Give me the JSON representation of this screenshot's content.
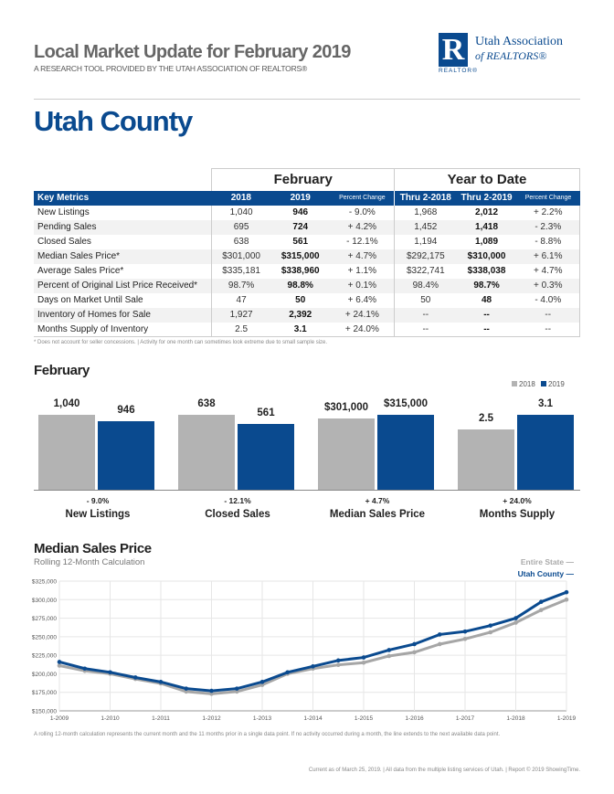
{
  "header": {
    "title": "Local Market Update for February 2019",
    "subtitle": "A RESEARCH TOOL PROVIDED BY THE UTAH ASSOCIATION OF REALTORS®",
    "logo": {
      "mark": "R",
      "realtor": "REALTOR®",
      "name1": "Utah Association",
      "name2": "of REALTORS®"
    }
  },
  "area": "Utah County",
  "table": {
    "groups": [
      "February",
      "Year to Date"
    ],
    "columns": [
      "Key Metrics",
      "2018",
      "2019",
      "Percent Change",
      "Thru 2-2018",
      "Thru 2-2019",
      "Percent Change"
    ],
    "rows": [
      [
        "New Listings",
        "1,040",
        "946",
        "- 9.0%",
        "1,968",
        "2,012",
        "+ 2.2%"
      ],
      [
        "Pending Sales",
        "695",
        "724",
        "+ 4.2%",
        "1,452",
        "1,418",
        "- 2.3%"
      ],
      [
        "Closed Sales",
        "638",
        "561",
        "- 12.1%",
        "1,194",
        "1,089",
        "- 8.8%"
      ],
      [
        "Median Sales Price*",
        "$301,000",
        "$315,000",
        "+ 4.7%",
        "$292,175",
        "$310,000",
        "+ 6.1%"
      ],
      [
        "Average Sales Price*",
        "$335,181",
        "$338,960",
        "+ 1.1%",
        "$322,741",
        "$338,038",
        "+ 4.7%"
      ],
      [
        "Percent of Original List Price Received*",
        "98.7%",
        "98.8%",
        "+ 0.1%",
        "98.4%",
        "98.7%",
        "+ 0.3%"
      ],
      [
        "Days on Market Until Sale",
        "47",
        "50",
        "+ 6.4%",
        "50",
        "48",
        "- 4.0%"
      ],
      [
        "Inventory of Homes for Sale",
        "1,927",
        "2,392",
        "+ 24.1%",
        "--",
        "--",
        "--"
      ],
      [
        "Months Supply of Inventory",
        "2.5",
        "3.1",
        "+ 24.0%",
        "--",
        "--",
        "--"
      ]
    ],
    "footnote": "* Does not account for seller concessions.  |  Activity for one month can sometimes look extreme due to small sample size."
  },
  "chart_data": [
    {
      "type": "bar",
      "title": "February",
      "legend": [
        "2018",
        "2019"
      ],
      "colors": [
        "#b3b3b3",
        "#0a4a8f"
      ],
      "legend_placement": "top-right",
      "groups": [
        {
          "name": "New Listings",
          "change": "- 9.0%",
          "values": [
            1040,
            946
          ],
          "labels": [
            "1,040",
            "946"
          ]
        },
        {
          "name": "Closed Sales",
          "change": "- 12.1%",
          "values": [
            638,
            561
          ],
          "labels": [
            "638",
            "561"
          ]
        },
        {
          "name": "Median Sales Price",
          "change": "+ 4.7%",
          "values": [
            301000,
            315000
          ],
          "labels": [
            "$301,000",
            "$315,000"
          ]
        },
        {
          "name": "Months Supply",
          "change": "+ 24.0%",
          "values": [
            2.5,
            3.1
          ],
          "labels": [
            "2.5",
            "3.1"
          ]
        }
      ]
    },
    {
      "type": "line",
      "title": "Median Sales Price",
      "subtitle": "Rolling 12-Month Calculation",
      "grid": true,
      "ylim": [
        150000,
        325000
      ],
      "yticks": [
        "$150,000",
        "$175,000",
        "$200,000",
        "$225,000",
        "$250,000",
        "$275,000",
        "$300,000",
        "$325,000"
      ],
      "xticks": [
        "1-2009",
        "1-2010",
        "1-2011",
        "1-2012",
        "1-2013",
        "1-2014",
        "1-2015",
        "1-2016",
        "1-2017",
        "1-2018",
        "1-2019"
      ],
      "x": [
        "1-2009",
        "7-2009",
        "1-2010",
        "7-2010",
        "1-2011",
        "7-2011",
        "1-2012",
        "7-2012",
        "1-2013",
        "7-2013",
        "1-2014",
        "7-2014",
        "1-2015",
        "7-2015",
        "1-2016",
        "7-2016",
        "1-2017",
        "7-2017",
        "1-2018",
        "7-2018",
        "1-2019"
      ],
      "series": [
        {
          "name": "Entire State",
          "color": "#a6a6a6",
          "values": [
            211000,
            204000,
            200000,
            193000,
            187000,
            176000,
            173000,
            176000,
            185000,
            200000,
            207000,
            212000,
            215000,
            224000,
            229000,
            240000,
            247000,
            256000,
            269000,
            286000,
            300000
          ]
        },
        {
          "name": "Utah County",
          "color": "#0a4a8f",
          "values": [
            216000,
            207000,
            202000,
            195000,
            189000,
            180000,
            177000,
            180000,
            189000,
            202000,
            210000,
            218000,
            222000,
            232000,
            240000,
            253000,
            257000,
            265000,
            275000,
            297000,
            310000
          ]
        }
      ],
      "footnote": "A rolling 12-month calculation represents the current month and the 11 months prior in a single data point. If no activity occurred during a month, the line extends to the next available data point."
    }
  ],
  "footer": "Current as of March 25, 2019.  |  All data from the multiple listing services of Utah.  |  Report © 2019 ShowingTime."
}
